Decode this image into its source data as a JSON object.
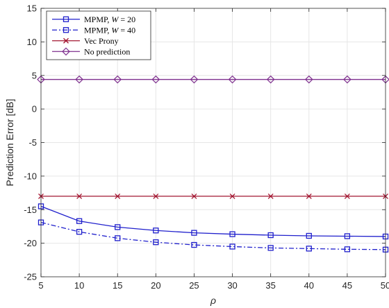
{
  "chart_data": {
    "type": "line",
    "title": "",
    "xlabel": "ρ",
    "ylabel": "Prediction Error [dB]",
    "xlim": [
      5,
      50
    ],
    "ylim": [
      -25,
      15
    ],
    "xticks": [
      5,
      10,
      15,
      20,
      25,
      30,
      35,
      40,
      45,
      50
    ],
    "yticks": [
      15,
      10,
      5,
      0,
      -5,
      -10,
      -15,
      -20,
      -25
    ],
    "grid": true,
    "legend_placement": "top-left",
    "x": [
      5,
      10,
      15,
      20,
      25,
      30,
      35,
      40,
      45,
      50
    ],
    "series": [
      {
        "name": "MPMP, W = 20",
        "legend_prefix": "MPMP, ",
        "legend_var": "W",
        "legend_suffix": " = 20",
        "values": [
          -14.5,
          -16.7,
          -17.6,
          -18.1,
          -18.45,
          -18.65,
          -18.8,
          -18.9,
          -18.95,
          -19.0
        ],
        "color": "#1f1fcc",
        "dash": "solid",
        "marker": "square"
      },
      {
        "name": "MPMP, W = 40",
        "legend_prefix": "MPMP, ",
        "legend_var": "W",
        "legend_suffix": " = 40",
        "values": [
          -16.9,
          -18.3,
          -19.25,
          -19.85,
          -20.25,
          -20.5,
          -20.7,
          -20.8,
          -20.9,
          -20.95
        ],
        "color": "#1f1fcc",
        "dash": "dashdot",
        "marker": "square"
      },
      {
        "name": "Vec Prony",
        "legend_prefix": "Vec Prony",
        "legend_var": "",
        "legend_suffix": "",
        "values": [
          -13.0,
          -13.0,
          -13.0,
          -13.0,
          -13.0,
          -13.0,
          -13.0,
          -13.0,
          -13.0,
          -13.0
        ],
        "color": "#a2142f",
        "dash": "solid",
        "marker": "x"
      },
      {
        "name": "No prediction",
        "legend_prefix": "No prediction",
        "legend_var": "",
        "legend_suffix": "",
        "values": [
          4.4,
          4.4,
          4.4,
          4.4,
          4.4,
          4.4,
          4.4,
          4.4,
          4.4,
          4.4
        ],
        "color": "#7e2f8e",
        "dash": "solid",
        "marker": "diamond"
      }
    ]
  }
}
